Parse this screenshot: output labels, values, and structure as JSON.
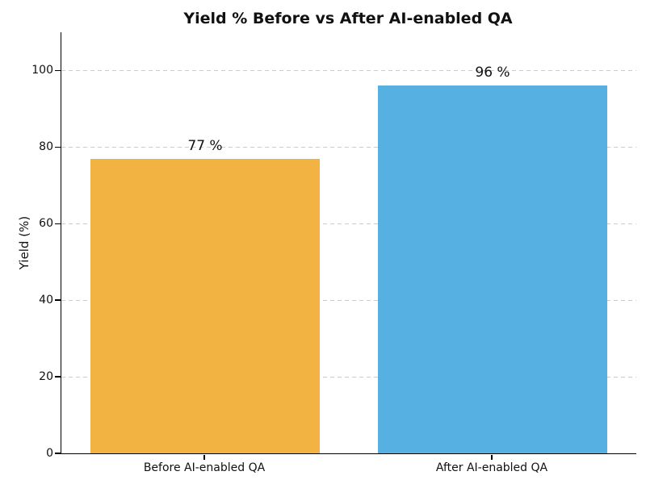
{
  "chart_data": {
    "type": "bar",
    "title": "Yield % Before vs After AI-enabled QA",
    "categories": [
      "Before AI-enabled QA",
      "After AI-enabled QA"
    ],
    "values": [
      77,
      96
    ],
    "value_labels": [
      "77 %",
      "96 %"
    ],
    "bar_colors": [
      "#F2B342",
      "#56B1E2"
    ],
    "xlabel": "",
    "ylabel": "Yield (%)",
    "yticks": [
      0,
      20,
      40,
      60,
      80,
      100
    ],
    "ylim": [
      0,
      110
    ],
    "grid": "horizontal-dashed",
    "gridline_color": "#cccccc",
    "spine_color": "#000000",
    "text_color": "#111111",
    "background_color": "#ffffff",
    "legend": "none"
  }
}
